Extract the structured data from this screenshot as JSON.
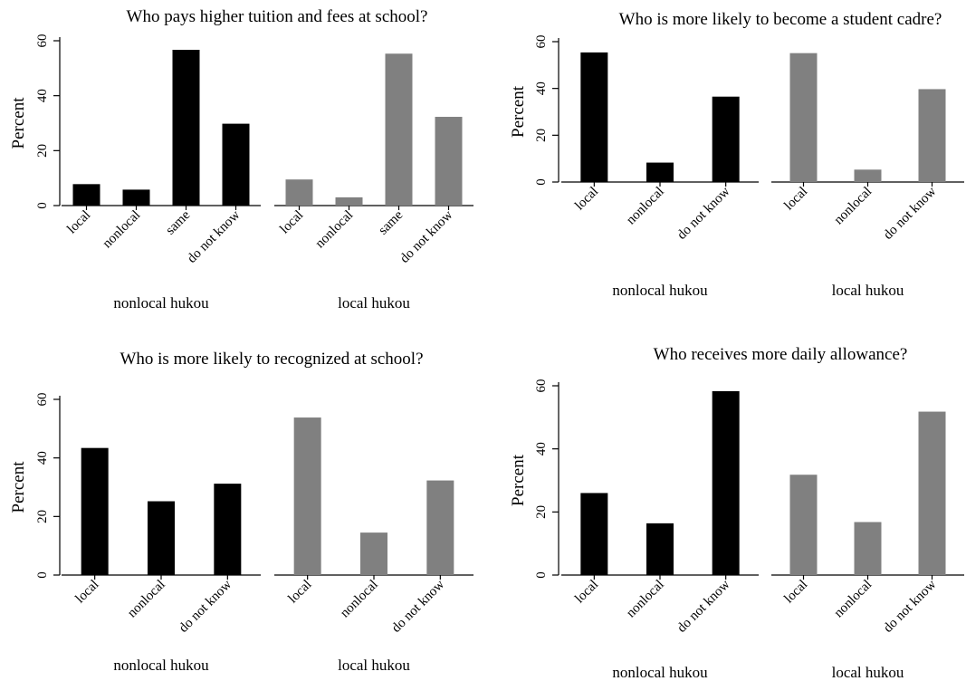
{
  "chart_data": [
    {
      "type": "bar",
      "title": "Who pays higher tuition and fees at school?",
      "ylabel": "Percent",
      "ylim": [
        0,
        60
      ],
      "yticks": [
        0,
        20,
        40,
        60
      ],
      "categories": [
        "local",
        "nonlocal",
        "same",
        "do not know"
      ],
      "series": [
        {
          "name": "nonlocal hukou",
          "color": "#000000",
          "values": [
            7.8,
            5.8,
            56.7,
            29.8
          ]
        },
        {
          "name": "local hukou",
          "color": "#808080",
          "values": [
            9.5,
            3.0,
            55.3,
            32.3
          ]
        }
      ]
    },
    {
      "type": "bar",
      "title": "Who is more likely to become a student cadre?",
      "ylabel": "Percent",
      "ylim": [
        0,
        60
      ],
      "yticks": [
        0,
        20,
        40,
        60
      ],
      "categories": [
        "local",
        "nonlocal",
        "do not know"
      ],
      "series": [
        {
          "name": "nonlocal hukou",
          "color": "#000000",
          "values": [
            55.4,
            8.3,
            36.5
          ]
        },
        {
          "name": "local hukou",
          "color": "#808080",
          "values": [
            55.1,
            5.3,
            39.7
          ]
        }
      ]
    },
    {
      "type": "bar",
      "title": "Who is more likely to recognized at school?",
      "ylabel": "Percent",
      "ylim": [
        0,
        60
      ],
      "yticks": [
        0,
        20,
        40,
        60
      ],
      "categories": [
        "local",
        "nonlocal",
        "do not know"
      ],
      "series": [
        {
          "name": "nonlocal hukou",
          "color": "#000000",
          "values": [
            43.4,
            25.2,
            31.2
          ]
        },
        {
          "name": "local hukou",
          "color": "#808080",
          "values": [
            53.8,
            14.5,
            32.3
          ]
        }
      ]
    },
    {
      "type": "bar",
      "title": "Who receives more daily allowance?",
      "ylabel": "Percent",
      "ylim": [
        0,
        60
      ],
      "yticks": [
        0,
        20,
        40,
        60
      ],
      "categories": [
        "local",
        "nonlocal",
        "do not know"
      ],
      "series": [
        {
          "name": "nonlocal hukou",
          "color": "#000000",
          "values": [
            26.0,
            16.4,
            58.3
          ]
        },
        {
          "name": "local hukou",
          "color": "#808080",
          "values": [
            31.8,
            16.8,
            51.8
          ]
        }
      ]
    }
  ]
}
